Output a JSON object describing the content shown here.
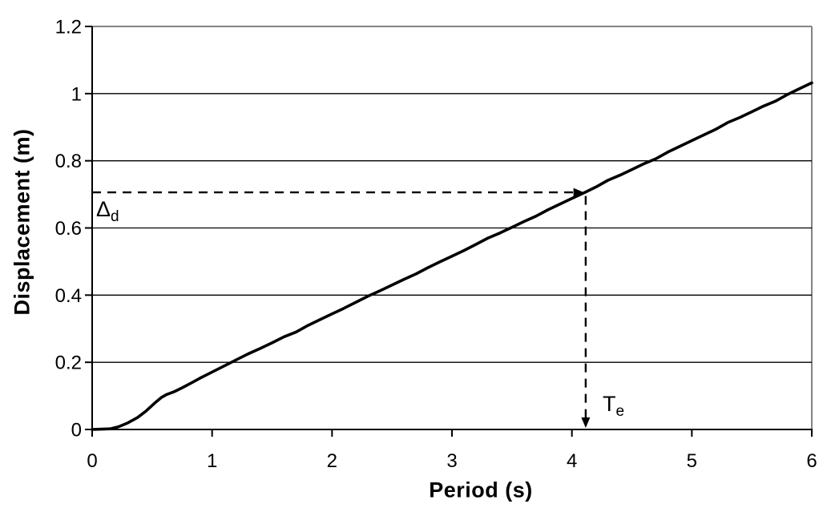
{
  "page": {
    "background": "#ffffff"
  },
  "colors": {
    "curve": "#000000",
    "grid": "#000000",
    "plot_border": "#848484",
    "axis": "#000000",
    "text": "#000000",
    "background": "#ffffff"
  },
  "chart_data": {
    "type": "line",
    "title": "",
    "xlabel": "Period (s)",
    "ylabel": "Displacement (m)",
    "xlim": [
      0,
      6
    ],
    "ylim": [
      0,
      1.2
    ],
    "xticks": [
      0,
      1,
      2,
      3,
      4,
      5,
      6
    ],
    "xtick_labels": [
      "0",
      "1",
      "2",
      "3",
      "4",
      "5",
      "6"
    ],
    "yticks": [
      0,
      0.2,
      0.4,
      0.6,
      0.8,
      1,
      1.2
    ],
    "ytick_labels": [
      "0",
      "0.2",
      "0.4",
      "0.6",
      "0.8",
      "1",
      "1.2"
    ],
    "grid": "horizontal",
    "legend": "none",
    "series": [
      {
        "name": "displacement-spectrum-curve",
        "color": "#000000",
        "points": [
          [
            0,
            0
          ],
          [
            0.08,
            0.001
          ],
          [
            0.15,
            0.002
          ],
          [
            0.22,
            0.008
          ],
          [
            0.3,
            0.02
          ],
          [
            0.38,
            0.036
          ],
          [
            0.45,
            0.055
          ],
          [
            0.52,
            0.078
          ],
          [
            0.58,
            0.096
          ],
          [
            0.62,
            0.104
          ],
          [
            0.68,
            0.112
          ],
          [
            0.75,
            0.124
          ],
          [
            0.83,
            0.139
          ],
          [
            0.9,
            0.153
          ],
          [
            1.0,
            0.171
          ],
          [
            1.1,
            0.189
          ],
          [
            1.2,
            0.207
          ],
          [
            1.3,
            0.225
          ],
          [
            1.4,
            0.241
          ],
          [
            1.5,
            0.258
          ],
          [
            1.6,
            0.276
          ],
          [
            1.7,
            0.29
          ],
          [
            1.8,
            0.31
          ],
          [
            1.9,
            0.327
          ],
          [
            2.0,
            0.344
          ],
          [
            2.1,
            0.361
          ],
          [
            2.2,
            0.379
          ],
          [
            2.3,
            0.397
          ],
          [
            2.4,
            0.413
          ],
          [
            2.5,
            0.43
          ],
          [
            2.6,
            0.447
          ],
          [
            2.7,
            0.463
          ],
          [
            2.8,
            0.482
          ],
          [
            2.9,
            0.499
          ],
          [
            3.0,
            0.516
          ],
          [
            3.1,
            0.533
          ],
          [
            3.2,
            0.551
          ],
          [
            3.3,
            0.57
          ],
          [
            3.4,
            0.585
          ],
          [
            3.5,
            0.602
          ],
          [
            3.6,
            0.619
          ],
          [
            3.7,
            0.635
          ],
          [
            3.8,
            0.654
          ],
          [
            3.9,
            0.671
          ],
          [
            4.0,
            0.688
          ],
          [
            4.115,
            0.707
          ],
          [
            4.2,
            0.722
          ],
          [
            4.3,
            0.742
          ],
          [
            4.4,
            0.757
          ],
          [
            4.5,
            0.774
          ],
          [
            4.6,
            0.791
          ],
          [
            4.7,
            0.806
          ],
          [
            4.8,
            0.826
          ],
          [
            4.9,
            0.843
          ],
          [
            5.0,
            0.86
          ],
          [
            5.1,
            0.877
          ],
          [
            5.2,
            0.894
          ],
          [
            5.3,
            0.914
          ],
          [
            5.4,
            0.929
          ],
          [
            5.5,
            0.946
          ],
          [
            5.6,
            0.963
          ],
          [
            5.7,
            0.978
          ],
          [
            5.8,
            0.998
          ],
          [
            5.9,
            1.015
          ],
          [
            6.0,
            1.032
          ]
        ]
      }
    ],
    "annotations": {
      "delta_d": {
        "label": "Δd",
        "symbol": "Δ",
        "subscript": "d",
        "value": 0.7,
        "guide_y": 0.706,
        "guide_x_start": 0,
        "arrow_tip_x": 4.1
      },
      "t_e": {
        "label": "Te",
        "symbol": "T",
        "subscript": "e",
        "value": 4.1,
        "guide_x": 4.115,
        "guide_y_start": 0.695,
        "arrow_tip_y": 0
      }
    }
  }
}
